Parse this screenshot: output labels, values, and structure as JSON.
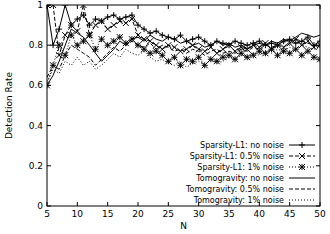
{
  "chart_data": {
    "type": "line",
    "xlabel": "N",
    "ylabel": "Detection Rate",
    "x": [
      5,
      6,
      7,
      8,
      9,
      10,
      11,
      12,
      13,
      14,
      15,
      16,
      17,
      18,
      19,
      20,
      21,
      22,
      23,
      24,
      25,
      26,
      27,
      28,
      29,
      30,
      31,
      32,
      33,
      34,
      35,
      36,
      37,
      38,
      39,
      40,
      41,
      42,
      43,
      44,
      45,
      46,
      47,
      48,
      49,
      50
    ],
    "xlim": [
      5,
      50
    ],
    "xticks": [
      5,
      10,
      15,
      20,
      25,
      30,
      35,
      40,
      45,
      50
    ],
    "ylim": [
      0,
      1
    ],
    "yticks": [
      0,
      0.2,
      0.4,
      0.6,
      0.8,
      1
    ],
    "legend": "bottom-right",
    "series": [
      {
        "name": "Sparsity-L1: no noise",
        "color": "#000000",
        "marker": "plus",
        "line_style": "solid",
        "values": [
          1.0,
          0.8,
          0.88,
          1.0,
          0.9,
          0.93,
          0.95,
          0.9,
          0.93,
          0.92,
          0.94,
          0.95,
          0.93,
          0.94,
          0.95,
          0.9,
          0.88,
          0.86,
          0.87,
          0.85,
          0.84,
          0.83,
          0.85,
          0.82,
          0.83,
          0.84,
          0.82,
          0.8,
          0.82,
          0.81,
          0.8,
          0.82,
          0.81,
          0.8,
          0.81,
          0.82,
          0.8,
          0.81,
          0.8,
          0.82,
          0.83,
          0.81,
          0.82,
          0.84,
          0.8,
          0.82
        ]
      },
      {
        "name": "Sparsity-L1: 0.5% noise",
        "color": "#000000",
        "marker": "cross",
        "line_style": "dashed",
        "values": [
          1.0,
          1.0,
          0.75,
          0.85,
          0.9,
          0.87,
          1.0,
          0.85,
          0.9,
          0.92,
          0.88,
          0.9,
          0.92,
          0.91,
          0.93,
          0.85,
          0.83,
          0.82,
          0.8,
          0.78,
          0.8,
          0.79,
          0.77,
          0.78,
          0.8,
          0.78,
          0.77,
          0.79,
          0.76,
          0.78,
          0.8,
          0.77,
          0.79,
          0.78,
          0.8,
          0.79,
          0.81,
          0.78,
          0.8,
          0.79,
          0.81,
          0.83,
          0.8,
          0.82,
          0.79,
          0.8
        ]
      },
      {
        "name": "Sparsity-L1: 1% noise",
        "color": "#000000",
        "marker": "star",
        "line_style": "dotted",
        "values": [
          0.6,
          0.7,
          0.8,
          0.75,
          0.85,
          0.8,
          0.82,
          0.85,
          0.78,
          0.83,
          0.8,
          0.82,
          0.84,
          0.81,
          0.83,
          0.8,
          0.78,
          0.76,
          0.77,
          0.75,
          0.72,
          0.74,
          0.7,
          0.73,
          0.72,
          0.74,
          0.7,
          0.73,
          0.72,
          0.74,
          0.75,
          0.73,
          0.76,
          0.74,
          0.75,
          0.77,
          0.76,
          0.78,
          0.75,
          0.77,
          0.76,
          0.78,
          0.75,
          0.77,
          0.74,
          0.73
        ]
      },
      {
        "name": "Tomogravity: no noise",
        "color": "#000000",
        "marker": "none",
        "line_style": "solid",
        "values": [
          0.6,
          0.65,
          0.72,
          0.8,
          0.88,
          0.86,
          0.84,
          0.8,
          0.76,
          0.72,
          0.75,
          0.78,
          0.82,
          0.8,
          0.83,
          0.84,
          0.82,
          0.85,
          0.83,
          0.82,
          0.84,
          0.83,
          0.81,
          0.82,
          0.8,
          0.81,
          0.79,
          0.8,
          0.82,
          0.8,
          0.81,
          0.79,
          0.8,
          0.78,
          0.8,
          0.81,
          0.8,
          0.82,
          0.81,
          0.83,
          0.82,
          0.84,
          0.86,
          0.85,
          0.84,
          0.85
        ]
      },
      {
        "name": "Tomogravity: 0.5% noise",
        "color": "#000000",
        "marker": "none",
        "line_style": "dashed",
        "values": [
          0.64,
          0.7,
          0.68,
          0.75,
          0.8,
          0.78,
          0.76,
          0.74,
          0.7,
          0.73,
          0.76,
          0.79,
          0.77,
          0.8,
          0.82,
          0.8,
          0.79,
          0.81,
          0.78,
          0.8,
          0.79,
          0.77,
          0.78,
          0.76,
          0.78,
          0.77,
          0.75,
          0.77,
          0.78,
          0.76,
          0.77,
          0.76,
          0.78,
          0.77,
          0.79,
          0.78,
          0.8,
          0.79,
          0.8,
          0.82,
          0.8,
          0.83,
          0.82,
          0.81,
          0.8,
          0.79
        ]
      },
      {
        "name": "Tomogravity: 1% noise",
        "color": "#000000",
        "marker": "none",
        "line_style": "dotted",
        "values": [
          0.62,
          0.68,
          0.66,
          0.72,
          0.7,
          0.74,
          0.7,
          0.72,
          0.68,
          0.7,
          0.73,
          0.76,
          0.74,
          0.78,
          0.76,
          0.75,
          0.77,
          0.74,
          0.72,
          0.73,
          0.71,
          0.7,
          0.72,
          0.69,
          0.71,
          0.72,
          0.7,
          0.73,
          0.71,
          0.72,
          0.74,
          0.73,
          0.75,
          0.74,
          0.76,
          0.75,
          0.77,
          0.76,
          0.78,
          0.77,
          0.79,
          0.78,
          0.8,
          0.79,
          0.78,
          0.79
        ]
      }
    ]
  }
}
